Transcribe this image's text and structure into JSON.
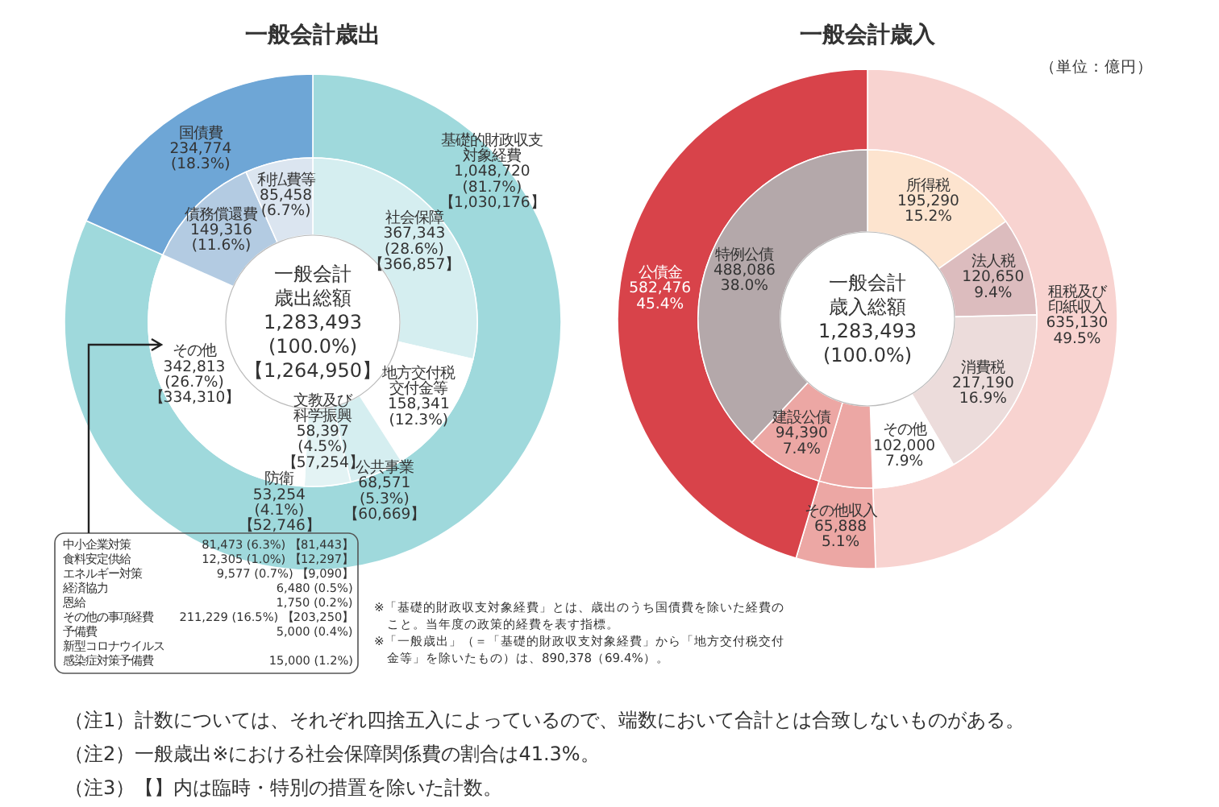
{
  "chart_data": [
    {
      "type": "donut",
      "title": "一般会計歳出",
      "categories": [
        "基礎的財政収支対象経費",
        "国債費"
      ],
      "values": [
        1048720,
        234774
      ],
      "colors": [
        "#9fd9dc",
        "#6ea6d6"
      ],
      "value_labels": [
        "1,048,720 (81.7%) 【1,030,176】",
        "234,774 (18.3%)"
      ],
      "annotations": [
        "中小企業対策 81,473 (6.3%) 【81,443】",
        "食料安定供給 12,305 (1.0%) 【12,297】",
        "エネルギー対策 9,577 (0.7%) 【9,090】",
        "経済協力 6,480 (0.5%)",
        "恩給 1,750 (0.2%)",
        "その他の事項経費 211,229 (16.5%) 【203,250】",
        "予備費 5,000 (0.4%)",
        "新型コロナウイルス感染症対策予備費 15,000 (1.2%)",
        "※「基礎的財政収支対象経費」とは、歳出のうち国債費を除いた経費のこと。当年度の政策的経費を表す指標。",
        "※「一般歳出」（＝「基礎的財政収支対象経費」から「地方交付税交付金等」を除いたもの）は、890,378（69.4%）。",
        "（注1）計数については、それぞれ四捨五入によっているので、端数において合計とは合致しないものがある。",
        "（注2）一般歳出※における社会保障関係費の割合は41.3%。",
        "（注3）【】内は臨時・特別の措置を除いた計数。"
      ]
    },
    {
      "type": "donut",
      "categories": [
        "社会保障",
        "地方交付税交付金等",
        "公共事業",
        "文教及び科学振興",
        "防衛",
        "その他",
        "債務償還費",
        "利払費等"
      ],
      "values": [
        367343,
        158341,
        68571,
        58397,
        53254,
        342813,
        149316,
        85458
      ],
      "colors": [
        "#d5eef0",
        "#ffffff",
        "#d5eef0",
        "#e3f3f4",
        "#ffffff",
        "#ffffff",
        "#b3cbe2",
        "#dbe5f0"
      ],
      "value_labels": [
        "367,343 (28.6%) 【366,857】",
        "158,341 (12.3%)",
        "68,571 (5.3%) 【60,669】",
        "58,397 (4.5%) 【57,254】",
        "53,254 (4.1%) 【52,746】",
        "342,813 (26.7%) 【334,310】",
        "149,316 (11.6%)",
        "85,458 (6.7%)"
      ],
      "annotations": [
        "一般会計歳出総額",
        "1,283,493",
        "(100.0%)",
        "【1,264,950】"
      ]
    },
    {
      "type": "donut",
      "title": "一般会計歳入",
      "subtitle": "（単位：億円）",
      "categories": [
        "租税及び印紙収入",
        "その他収入",
        "公債金"
      ],
      "values": [
        635130,
        65888,
        582476
      ],
      "colors": [
        "#f8d3d0",
        "#eca7a4",
        "#d8434a"
      ],
      "value_labels": [
        "635,130 49.5%",
        "65,888 5.1%",
        "582,476 45.4%"
      ]
    },
    {
      "type": "donut",
      "categories": [
        "所得税",
        "法人税",
        "消費税",
        "その他",
        null,
        "建設公債",
        "特例公債"
      ],
      "values": [
        195290,
        120650,
        217190,
        102000,
        65888,
        94390,
        488086
      ],
      "colors": [
        "#fde4cf",
        "#dcbcbe",
        "#ecdcdb",
        "#ffffff",
        "#eca7a4",
        "#eca7a4",
        "#b4a8aa"
      ],
      "value_labels": [
        "195,290 15.2%",
        "120,650 9.4%",
        "217,190 16.9%",
        "102,000 7.9%",
        null,
        "94,390 7.4%",
        "488,086 38.0%"
      ],
      "annotations": [
        "一般会計歳入総額",
        "1,283,493",
        "(100.0%)"
      ]
    }
  ]
}
